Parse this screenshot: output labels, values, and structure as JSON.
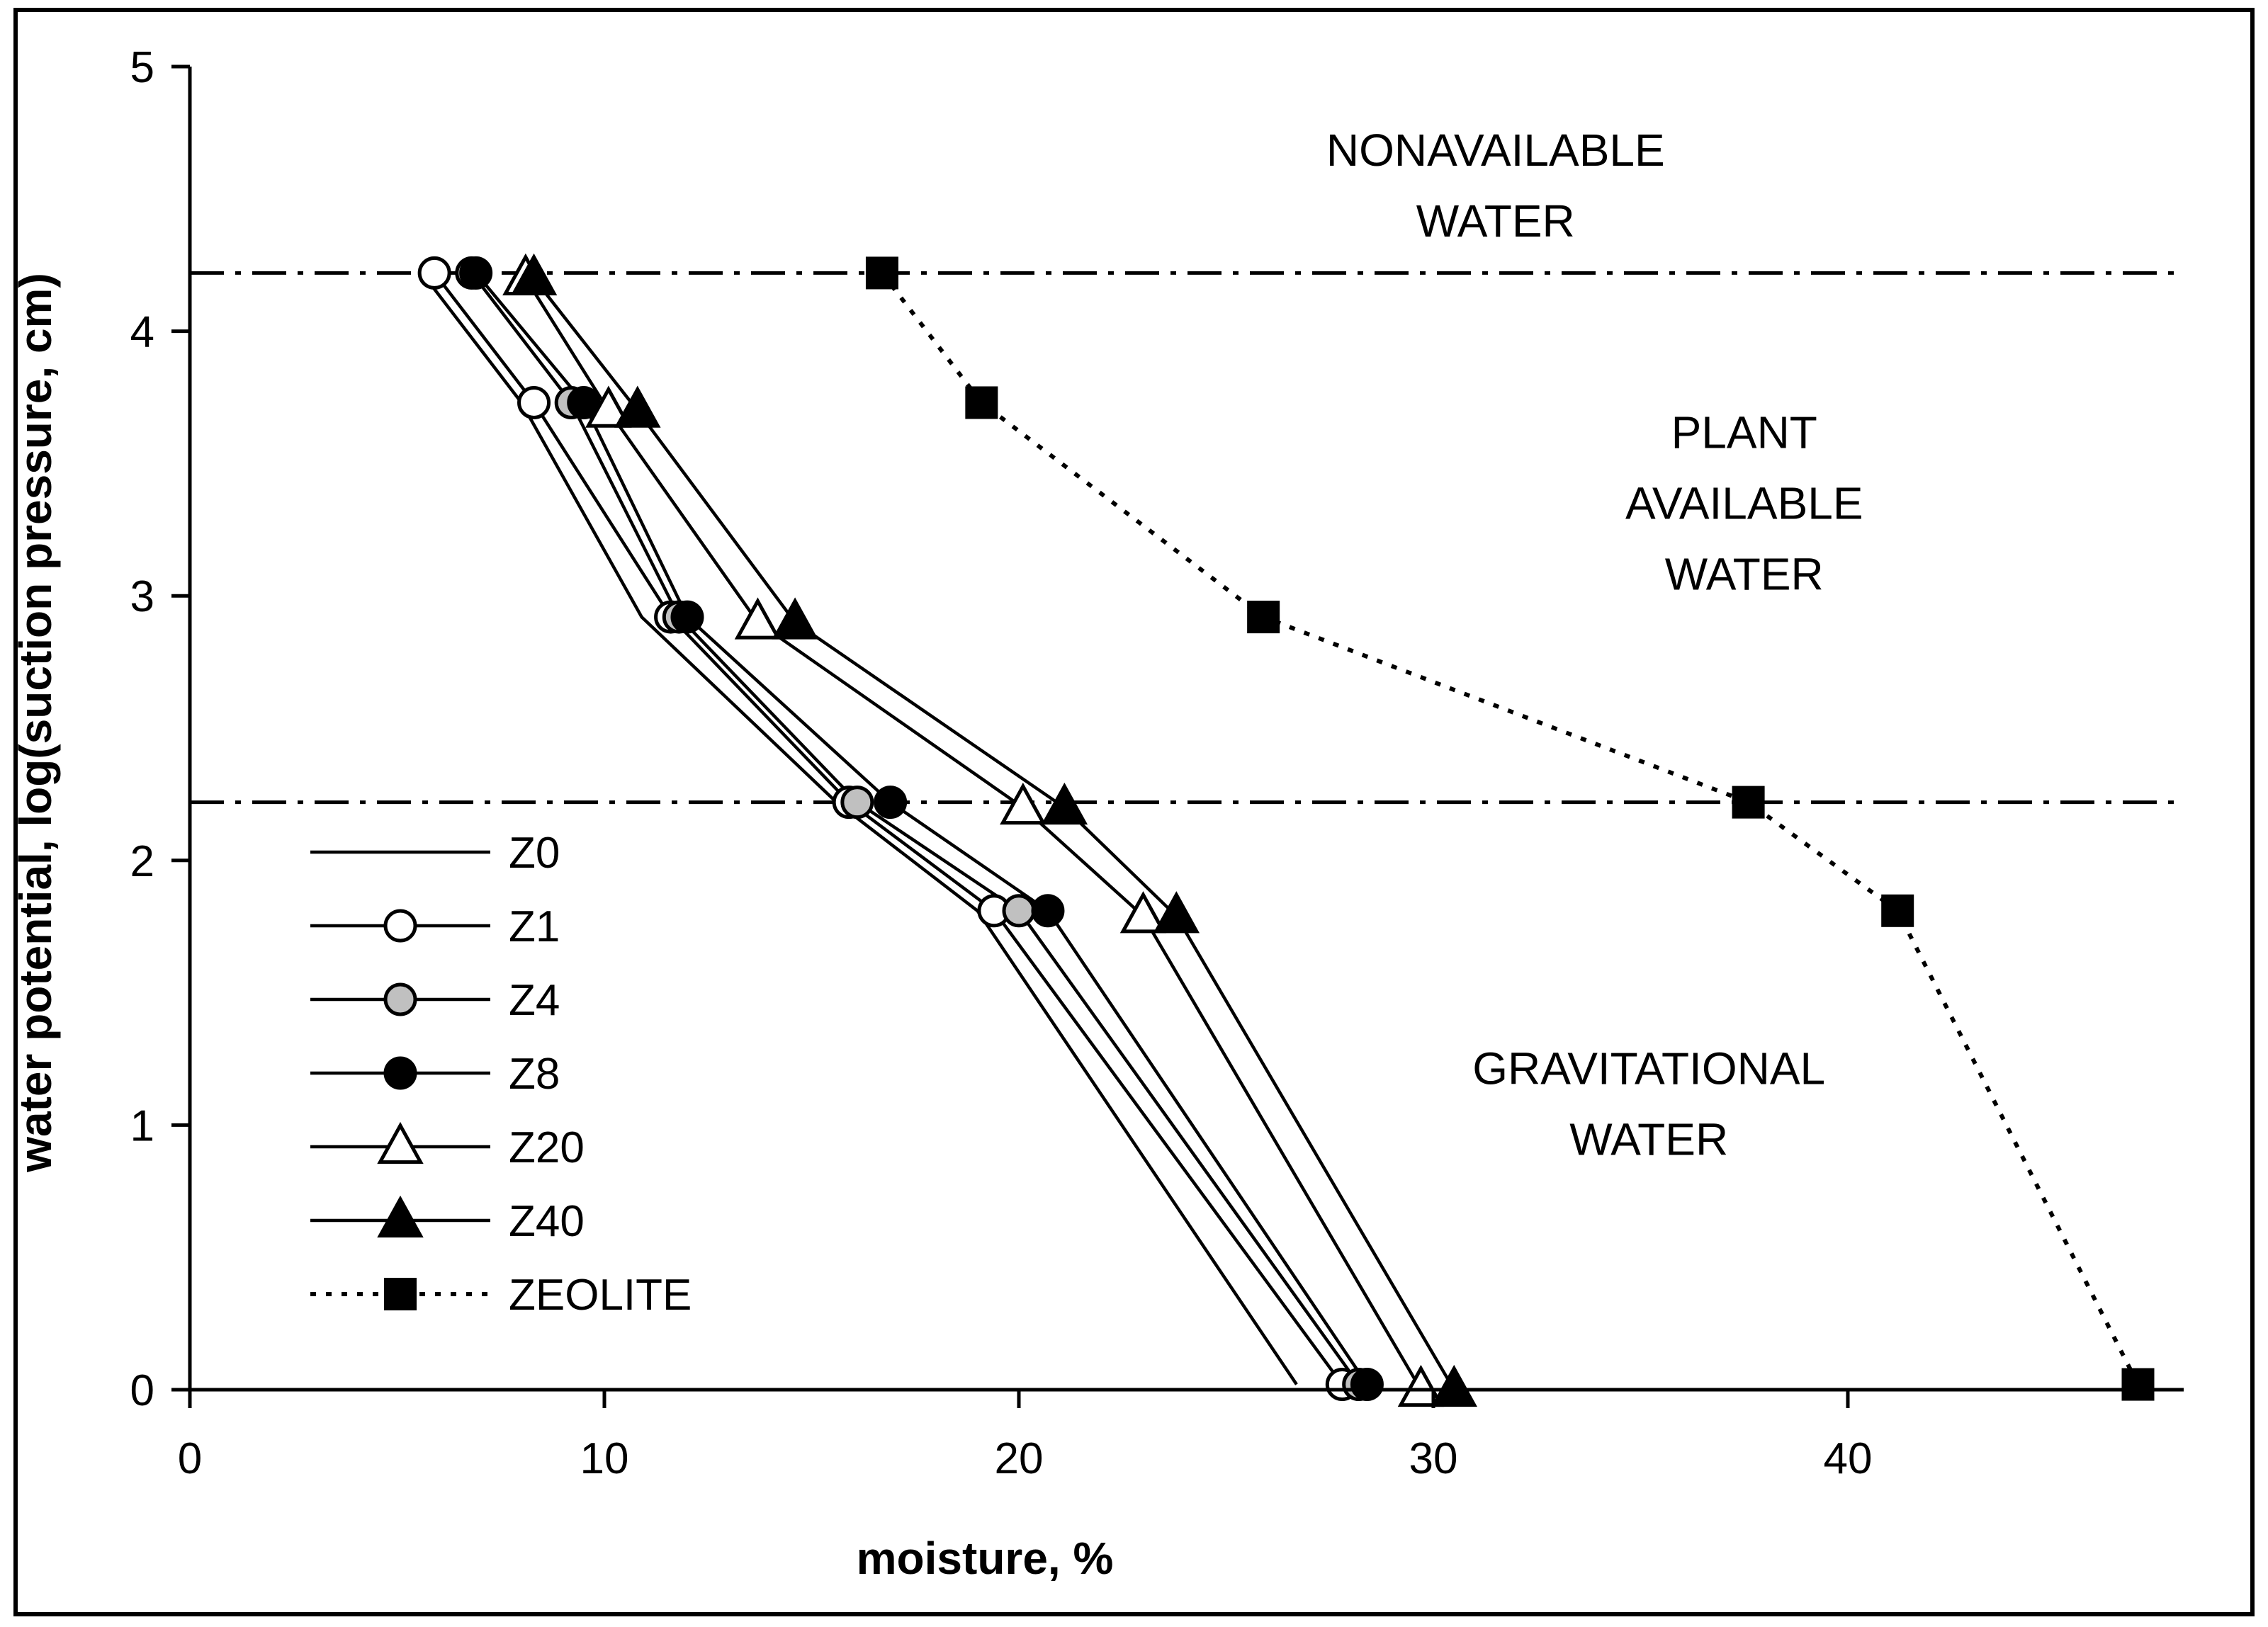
{
  "chart_data": {
    "type": "line",
    "title": "",
    "xlabel": "moisture, %",
    "ylabel": "water potential, log(suction pressure, cm)",
    "xlim": [
      0,
      48
    ],
    "ylim": [
      0,
      5
    ],
    "xticks": [
      "0",
      "10",
      "20",
      "30",
      "40"
    ],
    "yticks": [
      "0",
      "1",
      "2",
      "3",
      "4",
      "5"
    ],
    "grid": false,
    "legend_position": "left-middle",
    "reference_lines_y": [
      4.22,
      2.22
    ],
    "regions": [
      {
        "lines": [
          "NONAVAILABLE",
          "WATER"
        ],
        "x": 31.5,
        "y": 4.55
      },
      {
        "lines": [
          "PLANT",
          "AVAILABLE",
          "WATER"
        ],
        "x": 37.5,
        "y": 3.35
      },
      {
        "lines": [
          "GRAVITATIONAL",
          "WATER"
        ],
        "x": 35.2,
        "y": 1.08
      }
    ],
    "series": [
      {
        "name": "Z0",
        "marker": "none",
        "marker_fill": "none",
        "line": "solid",
        "x": [
          5.6,
          8.0,
          10.9,
          15.6,
          19.0,
          26.7
        ],
        "y": [
          4.22,
          3.73,
          2.92,
          2.22,
          1.81,
          0.02
        ]
      },
      {
        "name": "Z1",
        "marker": "circle",
        "marker_fill": "#ffffff",
        "line": "solid",
        "x": [
          5.9,
          8.3,
          11.6,
          15.9,
          19.4,
          27.8
        ],
        "y": [
          4.22,
          3.73,
          2.92,
          2.22,
          1.81,
          0.02
        ]
      },
      {
        "name": "Z4",
        "marker": "circle",
        "marker_fill": "#c0c0c0",
        "line": "solid",
        "x": [
          6.8,
          9.2,
          11.8,
          16.1,
          20.0,
          28.2
        ],
        "y": [
          4.22,
          3.73,
          2.92,
          2.22,
          1.81,
          0.02
        ]
      },
      {
        "name": "Z8",
        "marker": "circle",
        "marker_fill": "#000000",
        "line": "solid",
        "x": [
          6.9,
          9.5,
          12.0,
          16.9,
          20.7,
          28.4
        ],
        "y": [
          4.22,
          3.73,
          2.92,
          2.22,
          1.81,
          0.02
        ]
      },
      {
        "name": "Z20",
        "marker": "triangle",
        "marker_fill": "#ffffff",
        "line": "solid",
        "x": [
          8.1,
          10.1,
          13.7,
          20.1,
          23.0,
          29.7
        ],
        "y": [
          4.2,
          3.7,
          2.9,
          2.2,
          1.79,
          0.0
        ]
      },
      {
        "name": "Z40",
        "marker": "triangle",
        "marker_fill": "#000000",
        "line": "solid",
        "x": [
          8.3,
          10.8,
          14.6,
          21.1,
          23.8,
          30.5
        ],
        "y": [
          4.2,
          3.7,
          2.9,
          2.2,
          1.79,
          0.0
        ]
      },
      {
        "name": "ZEOLITE",
        "marker": "square",
        "marker_fill": "#000000",
        "line": "dotted",
        "x": [
          16.7,
          19.1,
          25.9,
          37.6,
          41.2,
          47.0
        ],
        "y": [
          4.22,
          3.73,
          2.92,
          2.22,
          1.81,
          0.02
        ]
      }
    ]
  }
}
